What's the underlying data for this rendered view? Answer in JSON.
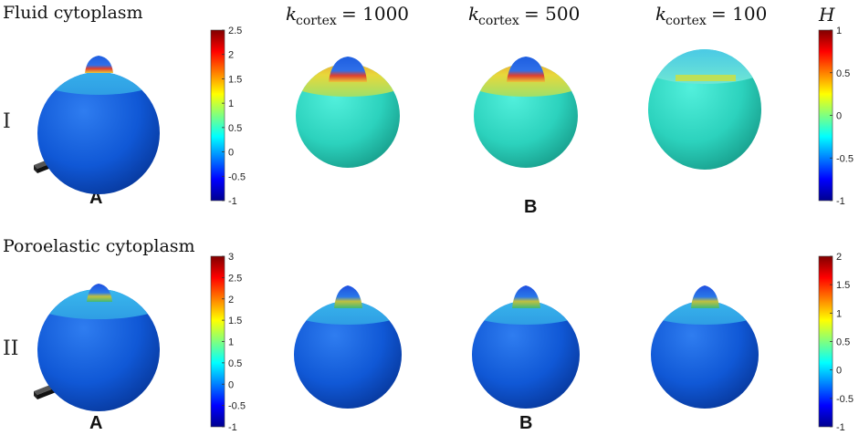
{
  "titles": {
    "row1": "Fluid cytoplasm",
    "row2": "Poroelastic cytoplasm",
    "row1_roman": "I",
    "row2_roman": "II",
    "panel_a": "A",
    "panel_b": "B"
  },
  "columns": {
    "k_symbol": "k",
    "k_sub": "cortex",
    "k1": "= 1000",
    "k2": "= 500",
    "k3": "= 100"
  },
  "colorbars": {
    "curvature_symbol": "H",
    "cb1_ticks": [
      "2.5",
      "2",
      "1.5",
      "1",
      "0.5",
      "0",
      "-0.5",
      "-1"
    ],
    "cb2_ticks": [
      "1",
      "0.5",
      "0",
      "-0.5",
      "-1"
    ],
    "cb3_ticks": [
      "3",
      "2.5",
      "2",
      "1.5",
      "1",
      "0.5",
      "0",
      "-0.5",
      "-1"
    ],
    "cb4_ticks": [
      "2",
      "1.5",
      "1",
      "0.5",
      "0",
      "-0.5",
      "-1"
    ]
  },
  "colors": {
    "deep_blue": "#0b4fd0",
    "cyan_body": "#2fd8c4",
    "cortex_band_row2": "#3fa6e6",
    "band_yellow": "#d7d637",
    "cap_red": "#e03a2a"
  }
}
